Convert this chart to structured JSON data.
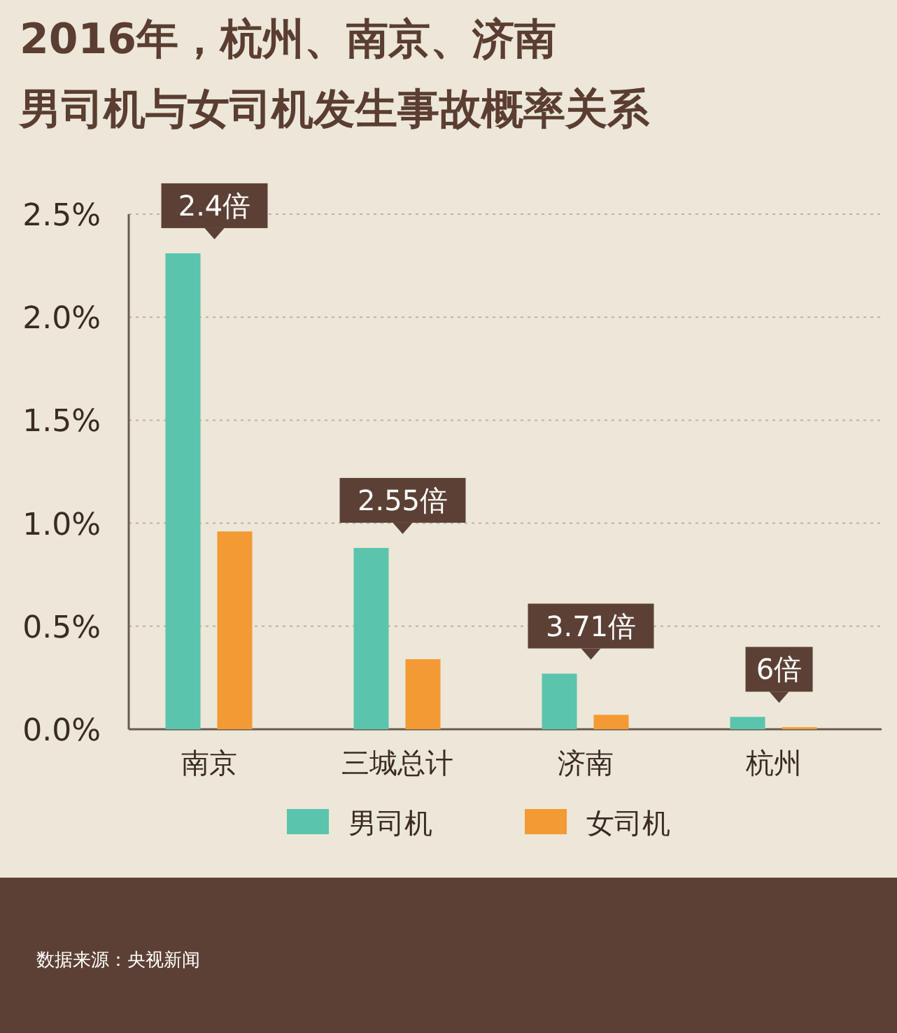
{
  "chart_data": {
    "type": "bar",
    "title": "2016年，杭州、南京、济南",
    "subtitle": "男司机与女司机发生事故概率关系",
    "categories": [
      "南京",
      "三城总计",
      "济南",
      "杭州"
    ],
    "series": [
      {
        "name": "男司机",
        "color": "#5bc4ad",
        "values": [
          2.31,
          0.88,
          0.27,
          0.06
        ]
      },
      {
        "name": "女司机",
        "color": "#f39a34",
        "values": [
          0.96,
          0.34,
          0.07,
          0.01
        ]
      }
    ],
    "ylim": [
      0,
      2.5
    ],
    "yticks": [
      {
        "value": 0,
        "label": "0.0%"
      },
      {
        "value": 0.5,
        "label": "0.5%"
      },
      {
        "value": 1,
        "label": "1.0%"
      },
      {
        "value": 1.5,
        "label": "1.5%"
      },
      {
        "value": 2,
        "label": "2.0%"
      },
      {
        "value": 2.5,
        "label": "2.5%"
      }
    ],
    "grid": "y",
    "legend": "bottom",
    "annotations": [
      "2.4倍",
      "2.55倍",
      "3.71倍",
      "6倍",
      "数据来源：央视新闻"
    ]
  }
}
